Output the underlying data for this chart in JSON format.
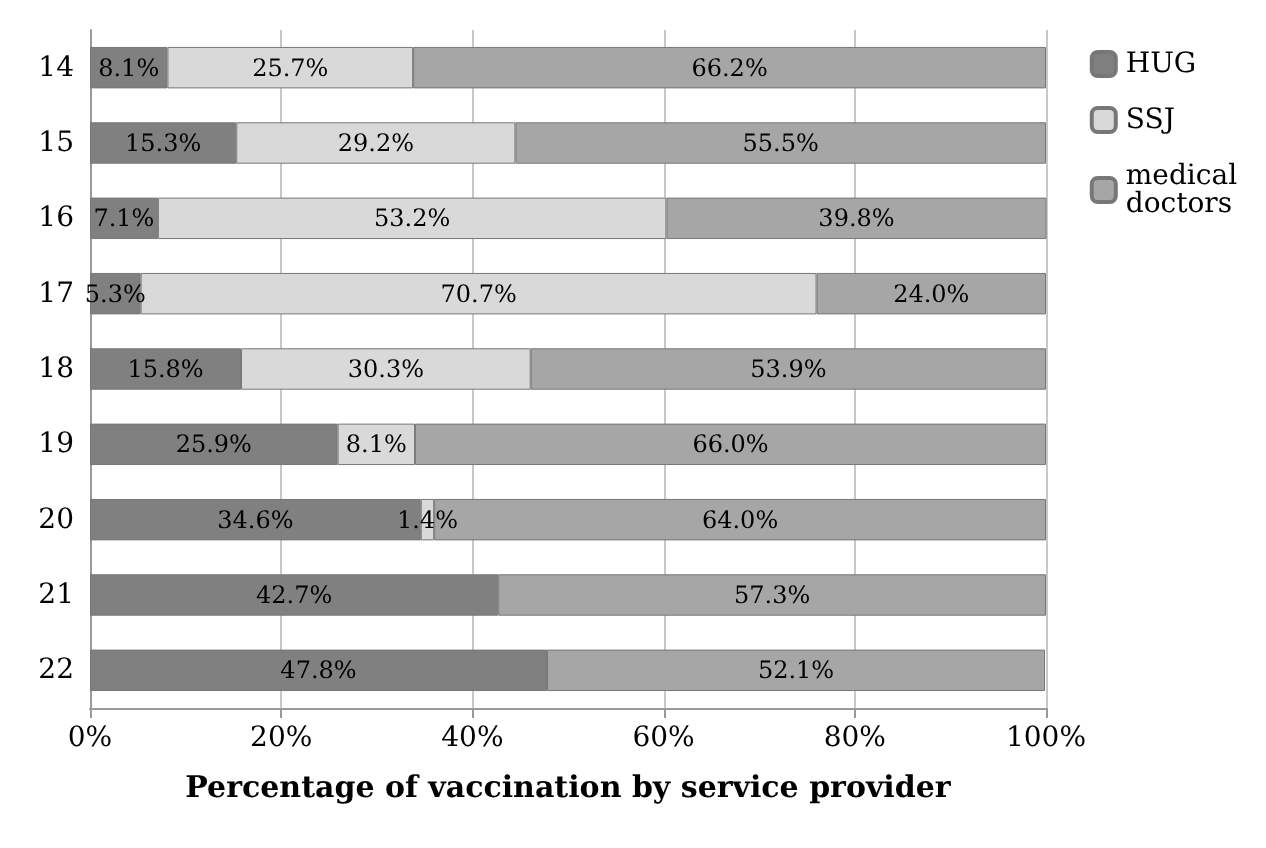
{
  "chart_data": {
    "type": "bar",
    "orientation": "horizontal",
    "stacked": true,
    "xlabel": "Percentage of vaccination by service provider",
    "categories": [
      "14",
      "15",
      "16",
      "17",
      "18",
      "19",
      "20",
      "21",
      "22"
    ],
    "series": [
      {
        "name": "HUG",
        "color": "#808080",
        "values": [
          8.1,
          15.3,
          7.1,
          5.3,
          15.8,
          25.9,
          34.6,
          42.7,
          47.8
        ],
        "value_labels": [
          "8.1%",
          "15.3%",
          "7.1%",
          "5.3%",
          "15.8%",
          "25.9%",
          "34.6%",
          "42.7%",
          "47.8%"
        ]
      },
      {
        "name": "SSJ",
        "color": "#d9d9d9",
        "values": [
          25.7,
          29.2,
          53.2,
          70.7,
          30.3,
          8.1,
          1.4,
          null,
          null
        ],
        "value_labels": [
          "25.7%",
          "29.2%",
          "53.2%",
          "70.7%",
          "30.3%",
          "8.1%",
          "1.4%",
          null,
          null
        ]
      },
      {
        "name": "medical doctors",
        "color": "#a6a6a6",
        "values": [
          66.2,
          55.5,
          39.8,
          24.0,
          53.9,
          66.0,
          64.0,
          57.3,
          52.1
        ],
        "value_labels": [
          "66.2%",
          "55.5%",
          "39.8%",
          "24.0%",
          "53.9%",
          "66.0%",
          "64.0%",
          "57.3%",
          "52.1%"
        ]
      }
    ],
    "xlim": [
      0,
      100
    ],
    "xticks": [
      {
        "value": 0,
        "label": "0%"
      },
      {
        "value": 20,
        "label": "20%"
      },
      {
        "value": 40,
        "label": "40%"
      },
      {
        "value": 60,
        "label": "60%"
      },
      {
        "value": 80,
        "label": "80%"
      },
      {
        "value": 100,
        "label": "100%"
      }
    ],
    "grid": "x",
    "legend": "right"
  }
}
